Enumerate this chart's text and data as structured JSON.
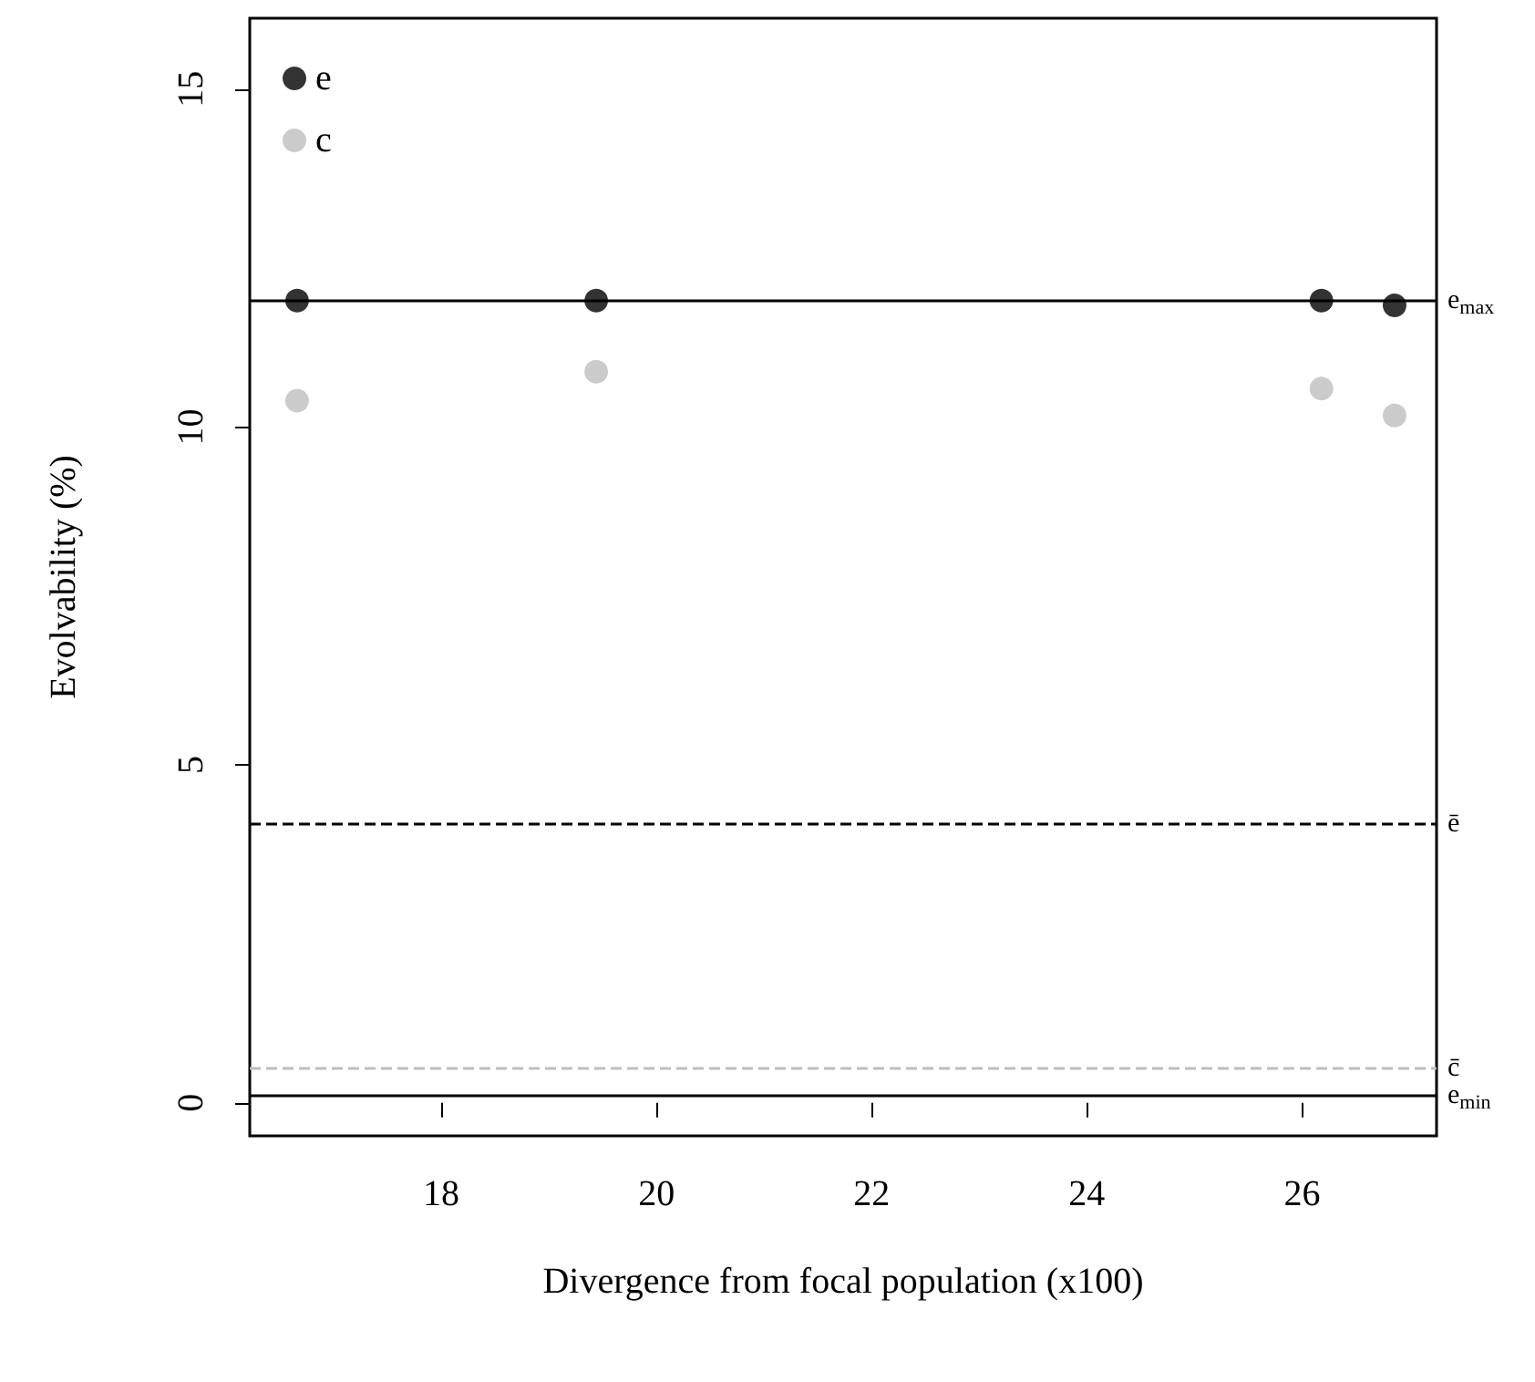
{
  "chart_data": {
    "type": "scatter",
    "xlabel": "Divergence from focal population (x100)",
    "ylabel": "Evolvability (%)",
    "x": [
      16.66,
      19.44,
      26.18,
      26.86
    ],
    "series": [
      {
        "name": "e",
        "color": "#000000",
        "values": [
          11.87,
          11.87,
          11.87,
          11.8
        ]
      },
      {
        "name": "c",
        "color": "#bebebe",
        "values": [
          10.39,
          10.82,
          10.57,
          10.17
        ]
      }
    ],
    "xlim": [
      16.22,
      27.25
    ],
    "xticks": [
      18,
      20,
      22,
      24,
      26
    ],
    "ylim": [
      -0.49,
      16.05
    ],
    "yticks": [
      0,
      5,
      10,
      15
    ],
    "ref_lines": [
      {
        "axis": "y",
        "value": 11.87,
        "label": "e$_{max}$",
        "color": "#000000",
        "line_style": "solid"
      },
      {
        "axis": "y",
        "value": 4.13,
        "label": "ē",
        "color": "#000000",
        "line_style": "dashed"
      },
      {
        "axis": "y",
        "value": 0.51,
        "label": "c̄",
        "color": "#bebebe",
        "line_style": "dashed"
      },
      {
        "axis": "y",
        "value": 0.11,
        "label": "e$_{min}$",
        "color": "#000000",
        "line_style": "solid"
      }
    ],
    "legend": "top left",
    "marker": "circle",
    "grid": false
  }
}
